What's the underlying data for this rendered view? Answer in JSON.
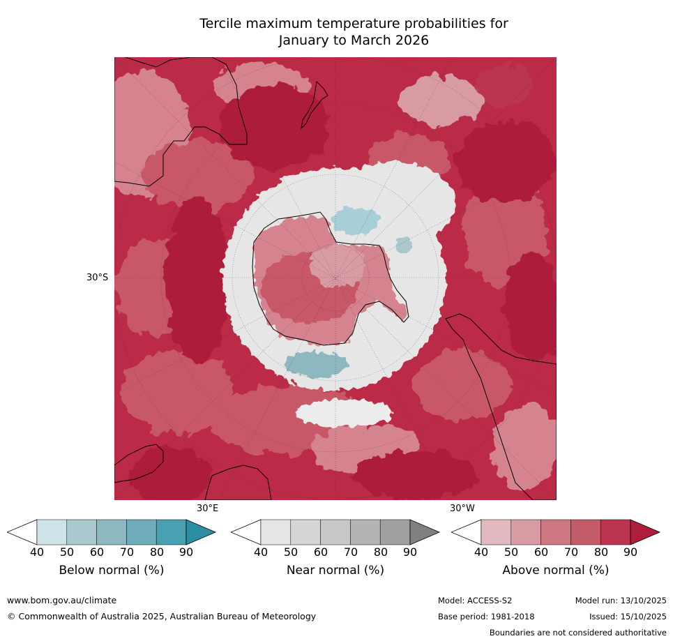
{
  "title": {
    "line1": "Tercile maximum temperature probabilities for",
    "line2": "January to March 2026"
  },
  "map": {
    "lat_label": "30°S",
    "lon_labels": {
      "east": "30°E",
      "west": "30°W"
    },
    "colors": {
      "ocean_hot": "#b81d3c",
      "warm": "#c85868",
      "mild": "#d4838f",
      "near_normal": "#e6e6e6",
      "cool": "#a6cfd8",
      "land_outline": "#000000"
    }
  },
  "colorbars": [
    {
      "title": "Below normal (%)",
      "ticks": [
        "40",
        "50",
        "60",
        "70",
        "80",
        "90"
      ],
      "colors": [
        "#ffffff",
        "#cde3e8",
        "#aac8cd",
        "#8db8bf",
        "#6eacba",
        "#48a0b1",
        "#2d8ea3"
      ]
    },
    {
      "title": "Near normal (%)",
      "ticks": [
        "40",
        "50",
        "60",
        "70",
        "80",
        "90"
      ],
      "colors": [
        "#ffffff",
        "#e6e6e6",
        "#d6d6d6",
        "#c8c8c8",
        "#b4b4b4",
        "#a0a0a0",
        "#808080"
      ]
    },
    {
      "title": "Above normal (%)",
      "ticks": [
        "40",
        "50",
        "60",
        "70",
        "80",
        "90"
      ],
      "colors": [
        "#ffffff",
        "#e2b9bf",
        "#d89ba3",
        "#cd7882",
        "#c45b69",
        "#bb3450",
        "#ae1d3a"
      ]
    }
  ],
  "footer": {
    "url": "www.bom.gov.au/climate",
    "copyright": "© Commonwealth of Australia 2025, Australian Bureau of Meteorology",
    "model": "Model: ACCESS-S2",
    "model_run": "Model run: 13/10/2025",
    "base_period": "Base period: 1981-2018",
    "issued": "Issued: 15/10/2025",
    "disclaimer": "Boundaries are not considered authoritative"
  }
}
